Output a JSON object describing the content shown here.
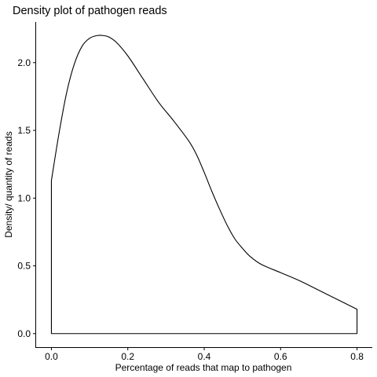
{
  "chart_data": {
    "type": "area",
    "title": "Density plot of pathogen reads",
    "xlabel": "Percentage of reads that map to pathogen",
    "ylabel": "Density/ quantity of reads",
    "xlim": [
      -0.04,
      0.84
    ],
    "ylim": [
      -0.1,
      2.3
    ],
    "x_ticks": [
      0.0,
      0.2,
      0.4,
      0.6,
      0.8
    ],
    "x_tick_labels": [
      "0.0",
      "0.2",
      "0.4",
      "0.6",
      "0.8"
    ],
    "y_ticks": [
      0.0,
      0.5,
      1.0,
      1.5,
      2.0
    ],
    "y_tick_labels": [
      "0.0",
      "0.5",
      "1.0",
      "1.5",
      "2.0"
    ],
    "grid": false,
    "fill": "none",
    "line_color": "#000000",
    "series": [
      {
        "x": [
          0.0,
          0.02,
          0.04,
          0.06,
          0.08,
          0.1,
          0.12,
          0.135,
          0.15,
          0.17,
          0.2,
          0.24,
          0.28,
          0.32,
          0.36,
          0.38,
          0.4,
          0.42,
          0.44,
          0.46,
          0.48,
          0.5,
          0.52,
          0.55,
          0.6,
          0.65,
          0.7,
          0.75,
          0.8
        ],
        "y": [
          1.13,
          1.48,
          1.78,
          1.99,
          2.12,
          2.18,
          2.2,
          2.2,
          2.19,
          2.15,
          2.05,
          1.88,
          1.71,
          1.57,
          1.42,
          1.32,
          1.19,
          1.05,
          0.92,
          0.8,
          0.7,
          0.63,
          0.57,
          0.51,
          0.45,
          0.39,
          0.32,
          0.25,
          0.18
        ]
      }
    ]
  }
}
